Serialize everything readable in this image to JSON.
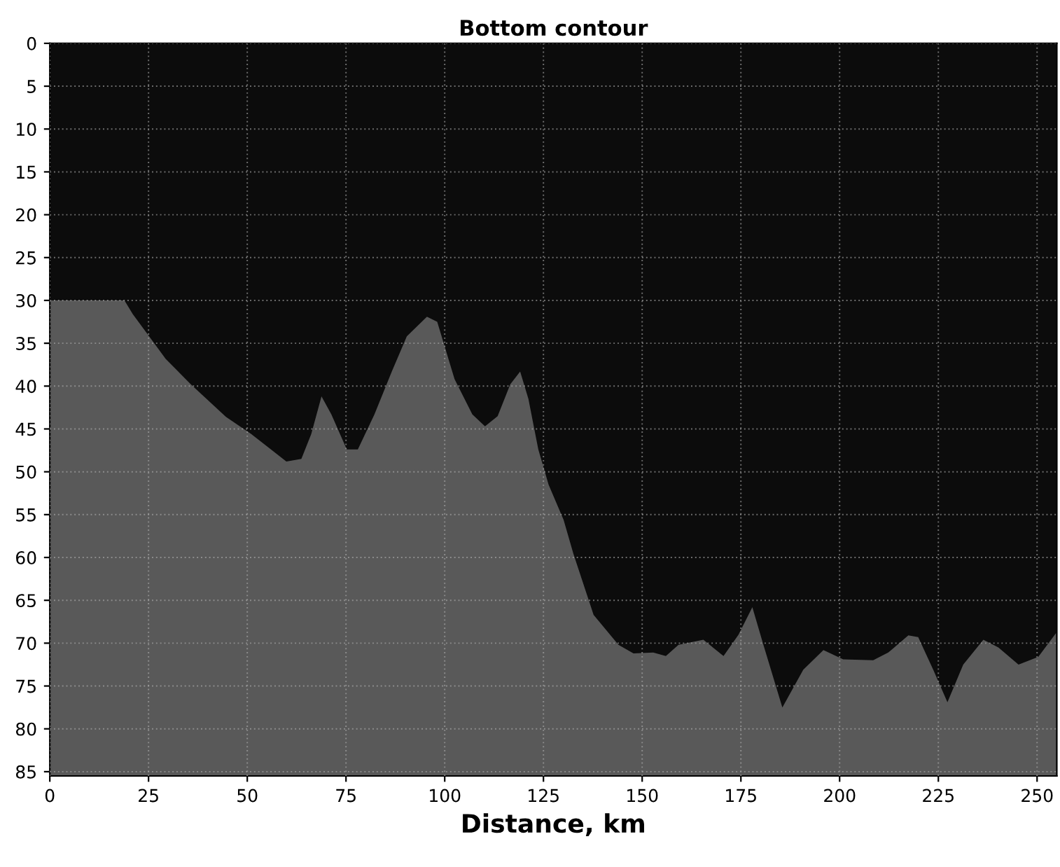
{
  "chart_data": {
    "type": "area",
    "title": "Bottom contour",
    "xlabel": "Distance, km",
    "x": [
      0,
      18.9,
      21,
      24.2,
      29.3,
      35.7,
      44.6,
      51,
      56,
      59.9,
      63.7,
      66.2,
      68.8,
      71.3,
      75.2,
      78,
      82.2,
      86.6,
      90.4,
      95.5,
      98.1,
      102.5,
      107,
      110.2,
      113.4,
      116.6,
      119.1,
      121.2,
      123.7,
      126.3,
      130.1,
      132.6,
      137.7,
      144,
      147.8,
      152.8,
      156,
      159.2,
      165.5,
      170.6,
      174.4,
      177.9,
      180.7,
      185.5,
      190.8,
      195.9,
      200.9,
      208.5,
      212.3,
      217.4,
      219.9,
      223.7,
      227.3,
      231.3,
      236.4,
      240.2,
      245.3,
      250.3,
      255
    ],
    "series": [
      {
        "color": "#0c0c0c",
        "values": [
          30,
          30,
          31.6,
          33.6,
          36.8,
          39.8,
          43.6,
          45.6,
          47.4,
          48.8,
          48.5,
          45.6,
          41.2,
          43.3,
          47.4,
          47.4,
          43.3,
          38.3,
          34.2,
          31.9,
          32.5,
          39.2,
          43.3,
          44.7,
          43.5,
          39.8,
          38.3,
          41.5,
          47.4,
          51.5,
          55.6,
          59.6,
          66.7,
          70.2,
          71.2,
          71.1,
          71.5,
          70.2,
          69.6,
          71.5,
          69,
          65.8,
          70.2,
          77.5,
          73.1,
          70.8,
          71.9,
          72,
          71.1,
          69.1,
          69.3,
          73.1,
          76.9,
          72.5,
          69.6,
          70.5,
          72.5,
          71.6,
          68.7
        ]
      }
    ],
    "xlim": [
      0,
      255
    ],
    "ylim": [
      85.5,
      0
    ],
    "xticks": [
      0,
      25,
      50,
      75,
      100,
      125,
      150,
      175,
      200,
      225,
      250
    ],
    "yticks": [
      0,
      5,
      10,
      15,
      20,
      25,
      30,
      35,
      40,
      45,
      50,
      55,
      60,
      65,
      70,
      75,
      80,
      85
    ],
    "grid": true
  }
}
